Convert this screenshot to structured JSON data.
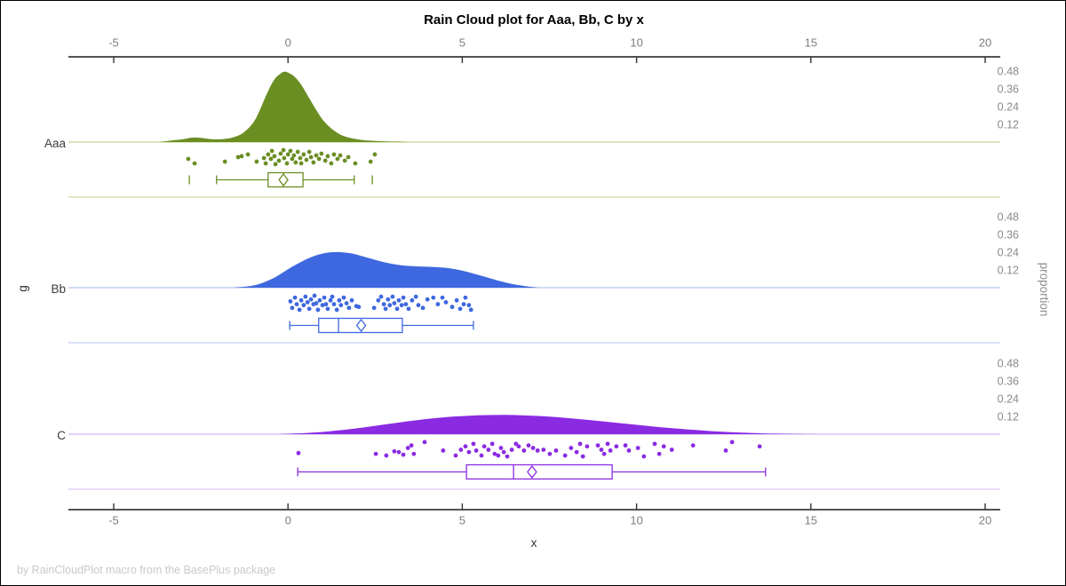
{
  "title": "Rain Cloud plot for Aaa, Bb, C by x",
  "footer": "by RainCloudPlot macro from the BasePlus package",
  "chart_data": {
    "type": "raincloud",
    "title": "Rain Cloud plot for Aaa, Bb, C by x",
    "xlabel": "x",
    "ylabel": "g",
    "ylabel_right": "proportion",
    "xlim": [
      -6.3,
      20.4
    ],
    "x_ticks": [
      -5,
      0,
      5,
      10,
      15,
      20
    ],
    "proportion_ticks": [
      0.48,
      0.36,
      0.24,
      0.12
    ],
    "grid": false,
    "legend": "none",
    "groups": [
      {
        "label": "Aaa",
        "color": "#6B8E23",
        "light_color": "#CEDCA4",
        "density": {
          "x": [
            -3.7,
            -3.3,
            -3.0,
            -2.75,
            -2.5,
            -2.2,
            -1.9,
            -1.6,
            -1.3,
            -1.0,
            -0.8,
            -0.6,
            -0.4,
            -0.2,
            -0.1,
            0.0,
            0.2,
            0.4,
            0.6,
            0.8,
            1.0,
            1.2,
            1.4,
            1.6,
            1.9,
            2.2,
            2.5,
            2.8,
            3.1,
            3.5
          ],
          "p": [
            0,
            0.012,
            0.02,
            0.03,
            0.028,
            0.02,
            0.02,
            0.03,
            0.06,
            0.13,
            0.22,
            0.33,
            0.42,
            0.465,
            0.475,
            0.47,
            0.44,
            0.38,
            0.3,
            0.22,
            0.15,
            0.1,
            0.065,
            0.04,
            0.022,
            0.012,
            0.008,
            0.005,
            0.003,
            0
          ]
        },
        "points": [
          [
            -2.86,
            0.61
          ],
          [
            -2.68,
            0.89
          ],
          [
            -1.81,
            0.78
          ],
          [
            -1.43,
            0.5
          ],
          [
            -1.33,
            0.44
          ],
          [
            -1.15,
            0.33
          ],
          [
            -0.9,
            0.78
          ],
          [
            -0.69,
            0.56
          ],
          [
            -0.64,
            0.89
          ],
          [
            -0.57,
            0.33
          ],
          [
            -0.49,
            0.61
          ],
          [
            -0.46,
            0.11
          ],
          [
            -0.39,
            0.44
          ],
          [
            -0.36,
            0.94
          ],
          [
            -0.26,
            0.72
          ],
          [
            -0.21,
            0.28
          ],
          [
            -0.13,
            0.06
          ],
          [
            -0.11,
            0.56
          ],
          [
            -0.03,
            0.89
          ],
          [
            0.0,
            0.33
          ],
          [
            0.07,
            0.11
          ],
          [
            0.12,
            0.61
          ],
          [
            0.17,
            0.39
          ],
          [
            0.22,
            0.83
          ],
          [
            0.28,
            0.17
          ],
          [
            0.35,
            0.56
          ],
          [
            0.38,
            0.89
          ],
          [
            0.45,
            0.33
          ],
          [
            0.53,
            0.67
          ],
          [
            0.61,
            0.17
          ],
          [
            0.66,
            0.5
          ],
          [
            0.73,
            0.83
          ],
          [
            0.81,
            0.39
          ],
          [
            0.89,
            0.61
          ],
          [
            0.96,
            0.28
          ],
          [
            1.07,
            0.72
          ],
          [
            1.14,
            0.44
          ],
          [
            1.24,
            0.89
          ],
          [
            1.32,
            0.33
          ],
          [
            1.42,
            0.61
          ],
          [
            1.5,
            0.39
          ],
          [
            1.63,
            0.72
          ],
          [
            1.73,
            0.5
          ],
          [
            1.93,
            0.89
          ],
          [
            2.37,
            0.78
          ],
          [
            2.49,
            0.33
          ]
        ],
        "box": {
          "whisker_low": -2.05,
          "q1": -0.57,
          "median": -0.13,
          "mean": -0.13,
          "q3": 0.43,
          "whisker_high": 1.9,
          "fence_caps": [
            -2.83,
            2.42
          ]
        }
      },
      {
        "label": "Bb",
        "color": "#3E68DF",
        "light_color": "#C4D1F2",
        "density": {
          "x": [
            -1.6,
            -1.2,
            -0.9,
            -0.6,
            -0.3,
            0.0,
            0.3,
            0.6,
            0.9,
            1.2,
            1.5,
            1.8,
            2.1,
            2.4,
            2.7,
            3.0,
            3.3,
            3.6,
            3.9,
            4.2,
            4.5,
            4.8,
            5.1,
            5.4,
            5.7,
            6.0,
            6.3,
            6.6,
            6.9,
            7.2
          ],
          "p": [
            0,
            0.008,
            0.02,
            0.045,
            0.08,
            0.125,
            0.165,
            0.2,
            0.225,
            0.238,
            0.24,
            0.232,
            0.215,
            0.195,
            0.175,
            0.16,
            0.15,
            0.145,
            0.142,
            0.14,
            0.135,
            0.125,
            0.11,
            0.09,
            0.07,
            0.05,
            0.032,
            0.018,
            0.008,
            0
          ]
        },
        "points": [
          [
            0.07,
            0.41
          ],
          [
            0.12,
            0.82
          ],
          [
            0.2,
            0.18
          ],
          [
            0.25,
            0.59
          ],
          [
            0.33,
            0.94
          ],
          [
            0.38,
            0.35
          ],
          [
            0.45,
            0.65
          ],
          [
            0.5,
            0.12
          ],
          [
            0.56,
            0.47
          ],
          [
            0.61,
            0.88
          ],
          [
            0.66,
            0.29
          ],
          [
            0.73,
            0.59
          ],
          [
            0.76,
            0.06
          ],
          [
            0.81,
            0.53
          ],
          [
            0.86,
            0.94
          ],
          [
            0.91,
            0.35
          ],
          [
            0.99,
            0.65
          ],
          [
            1.04,
            0.18
          ],
          [
            1.09,
            0.59
          ],
          [
            1.14,
            0.88
          ],
          [
            1.22,
            0.35
          ],
          [
            1.27,
            0.12
          ],
          [
            1.32,
            0.59
          ],
          [
            1.4,
            0.94
          ],
          [
            1.47,
            0.35
          ],
          [
            1.52,
            0.65
          ],
          [
            1.6,
            0.18
          ],
          [
            1.68,
            0.53
          ],
          [
            1.75,
            0.82
          ],
          [
            1.83,
            0.35
          ],
          [
            1.96,
            0.71
          ],
          [
            2.03,
            0.76
          ],
          [
            2.47,
            0.82
          ],
          [
            2.59,
            0.35
          ],
          [
            2.67,
            0.12
          ],
          [
            2.75,
            0.59
          ],
          [
            2.8,
            0.88
          ],
          [
            2.87,
            0.29
          ],
          [
            2.92,
            0.65
          ],
          [
            3.0,
            0.12
          ],
          [
            3.05,
            0.53
          ],
          [
            3.13,
            0.88
          ],
          [
            3.18,
            0.35
          ],
          [
            3.26,
            0.65
          ],
          [
            3.31,
            0.18
          ],
          [
            3.38,
            0.59
          ],
          [
            3.46,
            0.88
          ],
          [
            3.56,
            0.35
          ],
          [
            3.67,
            0.12
          ],
          [
            3.74,
            0.65
          ],
          [
            3.87,
            0.82
          ],
          [
            4.0,
            0.29
          ],
          [
            4.17,
            0.18
          ],
          [
            4.3,
            0.59
          ],
          [
            4.43,
            0.18
          ],
          [
            4.53,
            0.47
          ],
          [
            4.71,
            0.76
          ],
          [
            4.84,
            0.35
          ],
          [
            4.94,
            0.88
          ],
          [
            5.04,
            0.59
          ],
          [
            5.09,
            0.18
          ],
          [
            5.19,
            0.65
          ],
          [
            5.25,
            0.94
          ]
        ],
        "box": {
          "whisker_low": 0.05,
          "q1": 0.88,
          "median": 1.45,
          "mean": 2.1,
          "q3": 3.28,
          "whisker_high": 5.32,
          "fence_caps": []
        }
      },
      {
        "label": "C",
        "color": "#8A2BE2",
        "light_color": "#DCC6F2",
        "density": {
          "x": [
            -0.3,
            0.2,
            0.7,
            1.2,
            1.7,
            2.2,
            2.7,
            3.2,
            3.7,
            4.2,
            4.7,
            5.2,
            5.7,
            6.2,
            6.7,
            7.2,
            7.7,
            8.2,
            8.7,
            9.2,
            9.7,
            10.2,
            10.7,
            11.2,
            11.7,
            12.2,
            12.7,
            13.2,
            13.7,
            14.2,
            14.7,
            15.2
          ],
          "p": [
            0,
            0.004,
            0.01,
            0.02,
            0.032,
            0.047,
            0.063,
            0.08,
            0.095,
            0.108,
            0.118,
            0.125,
            0.129,
            0.13,
            0.128,
            0.123,
            0.115,
            0.105,
            0.094,
            0.082,
            0.07,
            0.058,
            0.047,
            0.037,
            0.028,
            0.02,
            0.014,
            0.009,
            0.005,
            0.003,
            0.001,
            0
          ]
        },
        "points": [
          [
            0.3,
            0.74
          ],
          [
            2.52,
            0.79
          ],
          [
            2.82,
            0.89
          ],
          [
            3.05,
            0.63
          ],
          [
            3.18,
            0.68
          ],
          [
            3.31,
            0.84
          ],
          [
            3.44,
            0.42
          ],
          [
            3.54,
            0.26
          ],
          [
            3.61,
            0.79
          ],
          [
            3.92,
            0.05
          ],
          [
            4.45,
            0.58
          ],
          [
            4.81,
            0.89
          ],
          [
            4.96,
            0.53
          ],
          [
            5.09,
            0.32
          ],
          [
            5.19,
            0.68
          ],
          [
            5.32,
            0.16
          ],
          [
            5.4,
            0.58
          ],
          [
            5.55,
            0.89
          ],
          [
            5.63,
            0.32
          ],
          [
            5.75,
            0.53
          ],
          [
            5.86,
            0.16
          ],
          [
            5.93,
            0.79
          ],
          [
            6.03,
            0.89
          ],
          [
            6.11,
            0.42
          ],
          [
            6.19,
            0.68
          ],
          [
            6.29,
            0.95
          ],
          [
            6.42,
            0.53
          ],
          [
            6.54,
            0.16
          ],
          [
            6.62,
            0.32
          ],
          [
            6.77,
            0.58
          ],
          [
            6.9,
            0.26
          ],
          [
            7.03,
            0.42
          ],
          [
            7.16,
            0.58
          ],
          [
            7.33,
            0.53
          ],
          [
            7.51,
            0.79
          ],
          [
            7.69,
            0.58
          ],
          [
            7.95,
            0.89
          ],
          [
            8.12,
            0.42
          ],
          [
            8.28,
            0.68
          ],
          [
            8.38,
            0.16
          ],
          [
            8.46,
            0.95
          ],
          [
            8.58,
            0.32
          ],
          [
            8.89,
            0.26
          ],
          [
            8.99,
            0.53
          ],
          [
            9.07,
            0.79
          ],
          [
            9.17,
            0.16
          ],
          [
            9.25,
            0.58
          ],
          [
            9.42,
            0.32
          ],
          [
            9.68,
            0.26
          ],
          [
            9.78,
            0.58
          ],
          [
            10.04,
            0.42
          ],
          [
            10.21,
            0.95
          ],
          [
            10.52,
            0.16
          ],
          [
            10.65,
            0.79
          ],
          [
            10.78,
            0.32
          ],
          [
            11.01,
            0.53
          ],
          [
            11.62,
            0.26
          ],
          [
            12.56,
            0.58
          ],
          [
            12.74,
            0.05
          ],
          [
            13.53,
            0.32
          ]
        ],
        "box": {
          "whisker_low": 0.28,
          "q1": 5.12,
          "median": 6.47,
          "mean": 7.0,
          "q3": 9.3,
          "whisker_high": 13.7,
          "fence_caps": []
        }
      }
    ]
  }
}
